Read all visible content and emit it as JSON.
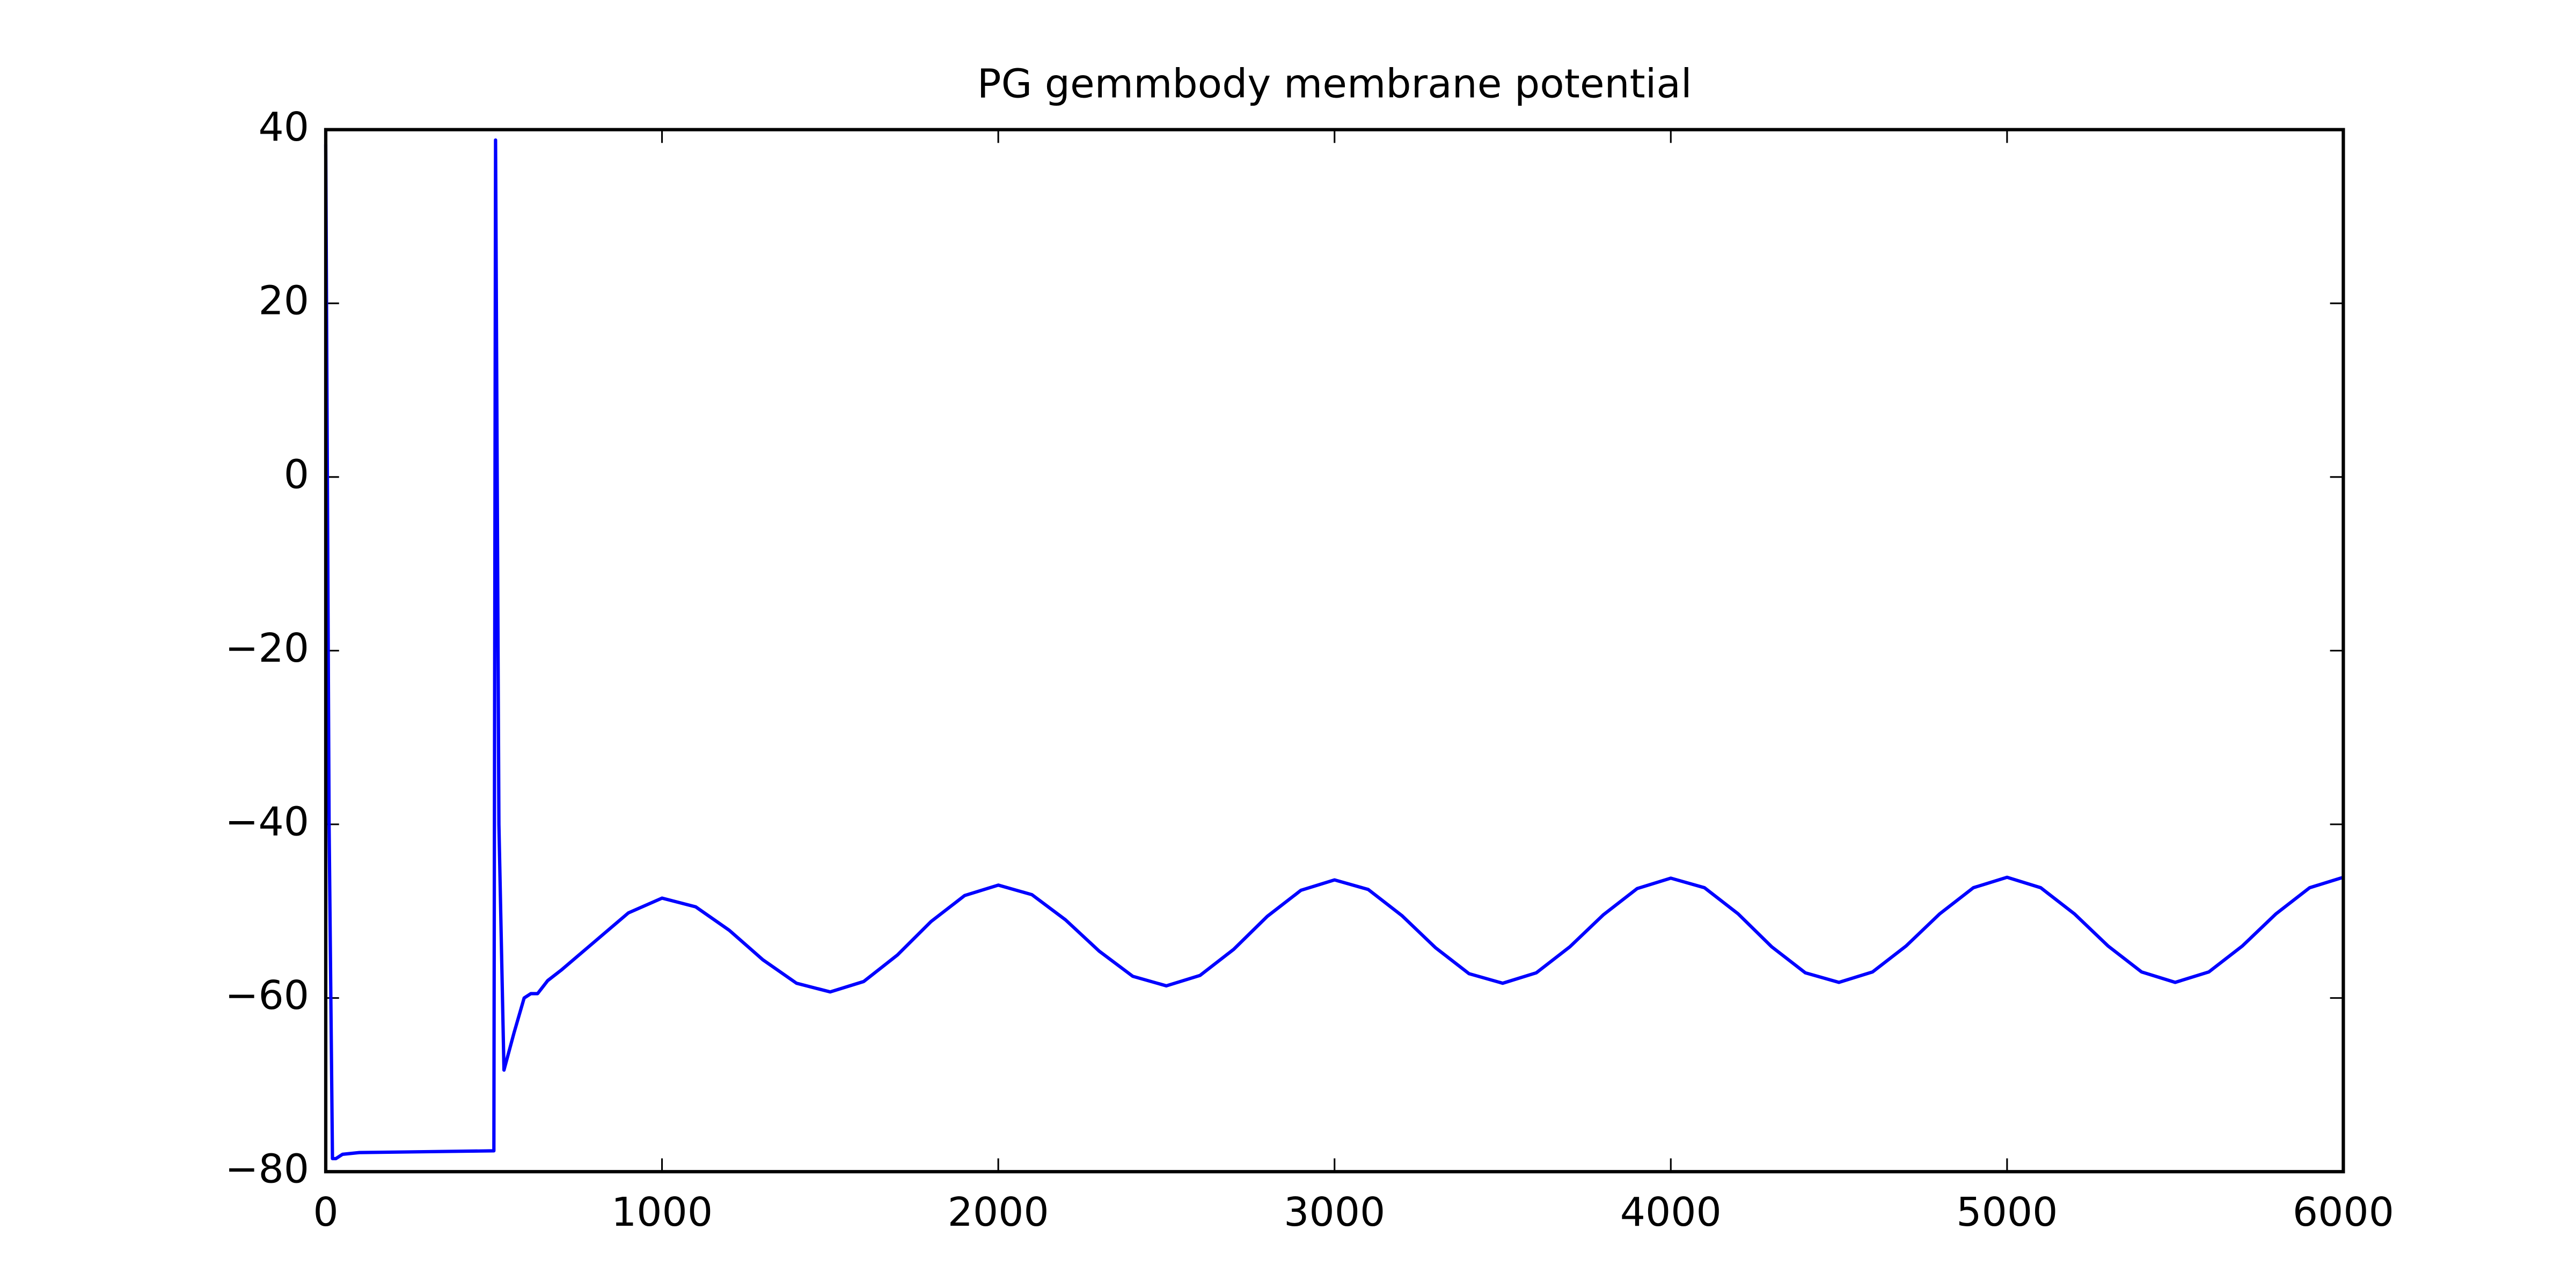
{
  "chart_data": {
    "type": "line",
    "title": "PG gemmbody membrane potential",
    "x": [
      0,
      10,
      20,
      30,
      50,
      100,
      500,
      505,
      515,
      530,
      560,
      590,
      610,
      630,
      660,
      700,
      800,
      900,
      1000,
      1100,
      1200,
      1300,
      1400,
      1500,
      1600,
      1700,
      1800,
      1900,
      2000,
      2100,
      2200,
      2300,
      2400,
      2500,
      2600,
      2700,
      2800,
      2900,
      3000,
      3100,
      3200,
      3300,
      3400,
      3500,
      3600,
      3700,
      3800,
      3900,
      4000,
      4100,
      4200,
      4300,
      4400,
      4500,
      4600,
      4700,
      4800,
      4900,
      5000,
      5100,
      5200,
      5300,
      5400,
      5500,
      5600,
      5700,
      5800,
      5900,
      6000
    ],
    "series": [
      {
        "name": "membrane potential",
        "color": "#0000ff",
        "values": [
          38.3,
          -40,
          -78.5,
          -78.5,
          -78,
          -77.8,
          -77.6,
          38.8,
          -40,
          -68.3,
          -64,
          -60,
          -59.5,
          -59.5,
          -58,
          -56.8,
          -53.5,
          -50.2,
          -48.5,
          -49.5,
          -52.2,
          -55.6,
          -58.3,
          -59.3,
          -58.1,
          -55.05,
          -51.2,
          -48.2,
          -47,
          -48.1,
          -51.0,
          -54.6,
          -57.5,
          -58.6,
          -57.4,
          -54.4,
          -50.6,
          -47.6,
          -46.4,
          -47.5,
          -50.5,
          -54.2,
          -57.2,
          -58.3,
          -57.1,
          -54.1,
          -50.4,
          -47.4,
          -46.2,
          -47.3,
          -50.3,
          -54.1,
          -57.1,
          -58.2,
          -57.0,
          -54.0,
          -50.3,
          -47.3,
          -46.1,
          -47.3,
          -50.3,
          -54.0,
          -57.0,
          -58.2,
          -57.0,
          -54.0,
          -50.3,
          -47.3,
          -46.1
        ]
      }
    ],
    "xlim": [
      0,
      6000
    ],
    "xticks": [
      0,
      1000,
      2000,
      3000,
      4000,
      5000,
      6000
    ],
    "ylim": [
      -80,
      40
    ],
    "yticks": [
      {
        "value": -80,
        "label": "−80"
      },
      {
        "value": -60,
        "label": "−60"
      },
      {
        "value": -40,
        "label": "−40"
      },
      {
        "value": -20,
        "label": "−20"
      },
      0,
      20,
      40
    ],
    "grid": false
  }
}
